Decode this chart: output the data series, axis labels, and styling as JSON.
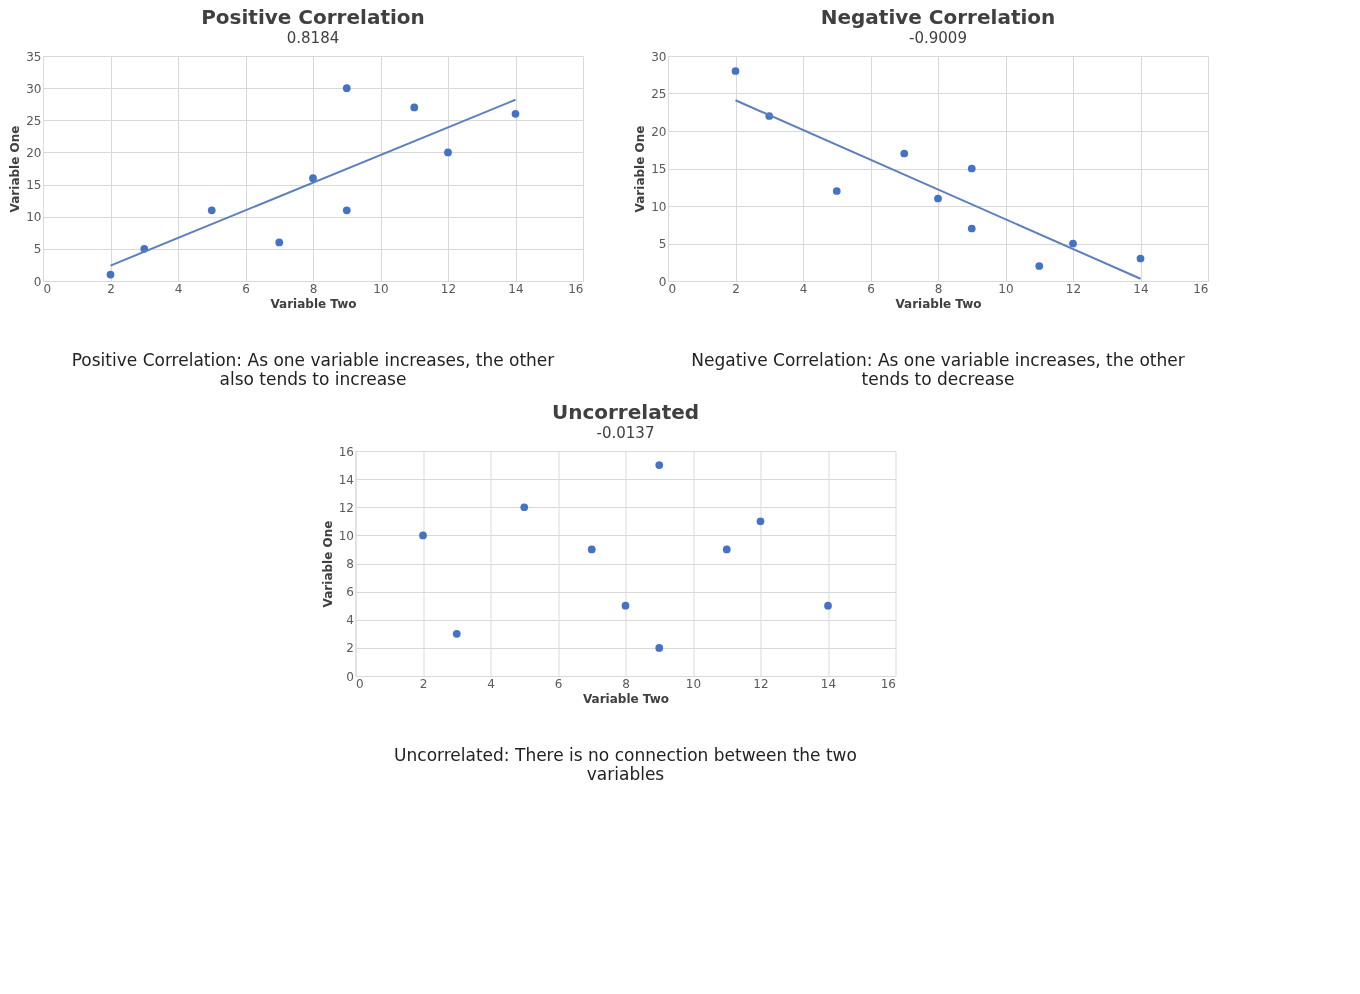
{
  "chart_data": [
    {
      "type": "scatter",
      "title": "Positive Correlation",
      "subtitle": "0.8184",
      "xlabel": "Variable Two",
      "ylabel": "Variable One",
      "xlim": [
        0,
        16
      ],
      "xticks": [
        0,
        2,
        4,
        6,
        8,
        10,
        12,
        14,
        16
      ],
      "ylim": [
        0,
        35
      ],
      "yticks": [
        0,
        5,
        10,
        15,
        20,
        25,
        30,
        35
      ],
      "grid": true,
      "marker": "circle",
      "annotations": [
        "Positive Correlation: As one variable increases, the other also tends to increase"
      ],
      "series": [
        {
          "color": "#4472c4",
          "x": [
            2,
            3,
            5,
            7,
            8,
            9,
            9,
            11,
            12,
            14
          ],
          "values": [
            1,
            5,
            11,
            6,
            16,
            30,
            11,
            27,
            20,
            26
          ]
        },
        {
          "type": "line",
          "marker": "none",
          "color": "#5b7fbf",
          "x": [
            2,
            14
          ],
          "values": [
            2.4,
            28.2
          ]
        }
      ]
    },
    {
      "type": "scatter",
      "title": "Negative Correlation",
      "subtitle": "-0.9009",
      "xlabel": "Variable Two",
      "ylabel": "Variable One",
      "xlim": [
        0,
        16
      ],
      "xticks": [
        0,
        2,
        4,
        6,
        8,
        10,
        12,
        14,
        16
      ],
      "ylim": [
        0,
        30
      ],
      "yticks": [
        0,
        5,
        10,
        15,
        20,
        25,
        30
      ],
      "grid": true,
      "marker": "circle",
      "annotations": [
        "Negative Correlation: As one variable increases, the other tends to decrease"
      ],
      "series": [
        {
          "color": "#4472c4",
          "x": [
            2,
            3,
            5,
            7,
            8,
            9,
            9,
            11,
            12,
            14
          ],
          "values": [
            28,
            22,
            12,
            17,
            11,
            15,
            7,
            2,
            5,
            3
          ]
        },
        {
          "type": "line",
          "marker": "none",
          "color": "#5b7fbf",
          "x": [
            2,
            14
          ],
          "values": [
            24.1,
            0.3
          ]
        }
      ]
    },
    {
      "type": "scatter",
      "title": "Uncorrelated",
      "subtitle": "-0.0137",
      "xlabel": "Variable Two",
      "ylabel": "Variable One",
      "xlim": [
        0,
        16
      ],
      "xticks": [
        0,
        2,
        4,
        6,
        8,
        10,
        12,
        14,
        16
      ],
      "ylim": [
        0,
        16
      ],
      "yticks": [
        0,
        2,
        4,
        6,
        8,
        10,
        12,
        14,
        16
      ],
      "grid": true,
      "marker": "circle",
      "annotations": [
        "Uncorrelated: There is no connection between the two variables"
      ],
      "series": [
        {
          "color": "#4472c4",
          "x": [
            2,
            3,
            5,
            7,
            8,
            9,
            9,
            11,
            12,
            14
          ],
          "values": [
            10,
            3,
            12,
            9,
            5,
            15,
            2,
            9,
            11,
            5
          ]
        }
      ]
    }
  ]
}
